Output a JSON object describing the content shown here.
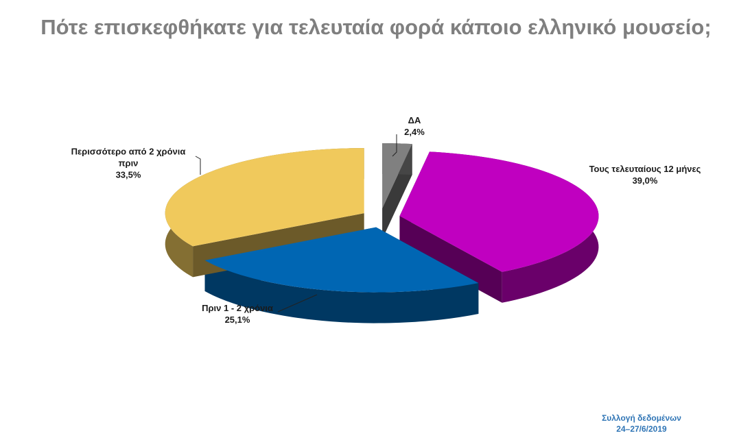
{
  "chart_data": {
    "type": "pie",
    "title": "Πότε επισκεφθήκατε για τελευταία φορά κάποιο ελληνικό μουσείο;",
    "categories": [
      "ΔΑ",
      "Τους τελευταίους 12 μήνες",
      "Πριν 1 - 2 χρόνια",
      "Περισσότερο από 2 χρόνια πριν"
    ],
    "values": [
      2.4,
      39.0,
      25.1,
      33.5
    ],
    "value_labels": [
      "2,4%",
      "39,0%",
      "25,1%",
      "33,5%"
    ],
    "colors": [
      "#808080",
      "#c000c0",
      "#0066b3",
      "#f0c95c"
    ],
    "footnote": [
      "Συλλογή δεδομένων",
      "24–27/6/2019"
    ]
  }
}
